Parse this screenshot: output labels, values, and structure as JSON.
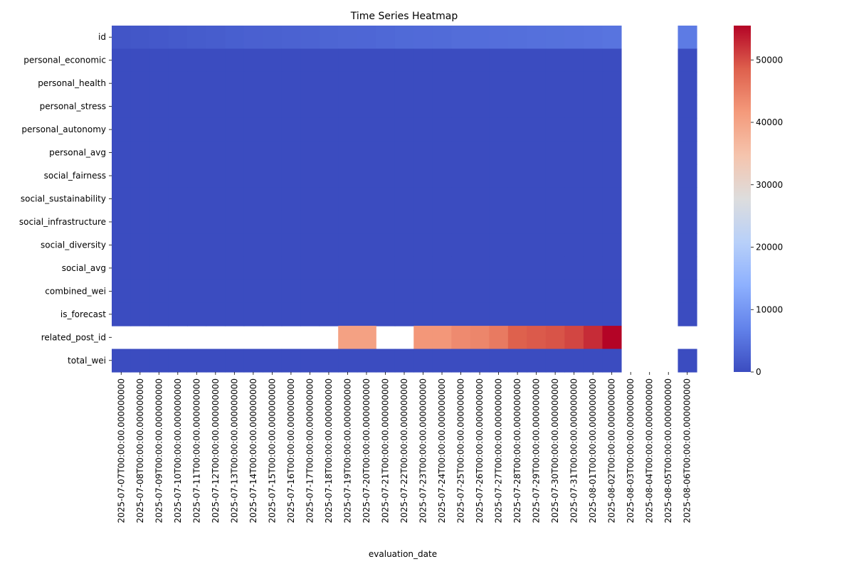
{
  "chart_data": {
    "type": "heatmap",
    "title": "Time Series Heatmap",
    "xlabel": "evaluation_date",
    "ylabel": "",
    "colormap": "coolwarm",
    "color_range": [
      0,
      55500
    ],
    "colorbar_ticks": [
      0,
      10000,
      20000,
      30000,
      40000,
      50000
    ],
    "colorbar_tick_labels": [
      "0",
      "10000",
      "20000",
      "30000",
      "40000",
      "50000"
    ],
    "rows": [
      "id",
      "personal_economic",
      "personal_health",
      "personal_stress",
      "personal_autonomy",
      "personal_avg",
      "social_fairness",
      "social_sustainability",
      "social_infrastructure",
      "social_diversity",
      "social_avg",
      "combined_wei",
      "is_forecast",
      "related_post_id",
      "total_wei"
    ],
    "columns": [
      "2025-07-07T00:00:00.000000000",
      "2025-07-08T00:00:00.000000000",
      "2025-07-09T00:00:00.000000000",
      "2025-07-10T00:00:00.000000000",
      "2025-07-11T00:00:00.000000000",
      "2025-07-12T00:00:00.000000000",
      "2025-07-13T00:00:00.000000000",
      "2025-07-14T00:00:00.000000000",
      "2025-07-15T00:00:00.000000000",
      "2025-07-16T00:00:00.000000000",
      "2025-07-17T00:00:00.000000000",
      "2025-07-18T00:00:00.000000000",
      "2025-07-19T00:00:00.000000000",
      "2025-07-20T00:00:00.000000000",
      "2025-07-21T00:00:00.000000000",
      "2025-07-22T00:00:00.000000000",
      "2025-07-23T00:00:00.000000000",
      "2025-07-24T00:00:00.000000000",
      "2025-07-25T00:00:00.000000000",
      "2025-07-26T00:00:00.000000000",
      "2025-07-27T00:00:00.000000000",
      "2025-07-28T00:00:00.000000000",
      "2025-07-29T00:00:00.000000000",
      "2025-07-30T00:00:00.000000000",
      "2025-07-31T00:00:00.000000000",
      "2025-08-01T00:00:00.000000000",
      "2025-08-02T00:00:00.000000000",
      "2025-08-03T00:00:00.000000000",
      "2025-08-04T00:00:00.000000000",
      "2025-08-05T00:00:00.000000000",
      "2025-08-06T00:00:00.000000000"
    ],
    "values": [
      [
        1200,
        1400,
        1600,
        1800,
        2000,
        2200,
        2400,
        2600,
        2700,
        2800,
        3000,
        3200,
        3300,
        3400,
        3600,
        3800,
        3900,
        4000,
        4200,
        4300,
        4400,
        4500,
        4600,
        4700,
        4800,
        4900,
        5200,
        null,
        null,
        null,
        6000
      ],
      [
        0,
        0,
        0,
        0,
        0,
        0,
        0,
        0,
        0,
        0,
        0,
        0,
        0,
        0,
        0,
        0,
        0,
        0,
        0,
        0,
        0,
        0,
        0,
        0,
        0,
        0,
        0,
        null,
        null,
        null,
        0
      ],
      [
        0,
        0,
        0,
        0,
        0,
        0,
        0,
        0,
        0,
        0,
        0,
        0,
        0,
        0,
        0,
        0,
        0,
        0,
        0,
        0,
        0,
        0,
        0,
        0,
        0,
        0,
        0,
        null,
        null,
        null,
        0
      ],
      [
        0,
        0,
        0,
        0,
        0,
        0,
        0,
        0,
        0,
        0,
        0,
        0,
        0,
        0,
        0,
        0,
        0,
        0,
        0,
        0,
        0,
        0,
        0,
        0,
        0,
        0,
        0,
        null,
        null,
        null,
        0
      ],
      [
        0,
        0,
        0,
        0,
        0,
        0,
        0,
        0,
        0,
        0,
        0,
        0,
        0,
        0,
        0,
        0,
        0,
        0,
        0,
        0,
        0,
        0,
        0,
        0,
        0,
        0,
        0,
        null,
        null,
        null,
        0
      ],
      [
        0,
        0,
        0,
        0,
        0,
        0,
        0,
        0,
        0,
        0,
        0,
        0,
        0,
        0,
        0,
        0,
        0,
        0,
        0,
        0,
        0,
        0,
        0,
        0,
        0,
        0,
        0,
        null,
        null,
        null,
        0
      ],
      [
        0,
        0,
        0,
        0,
        0,
        0,
        0,
        0,
        0,
        0,
        0,
        0,
        0,
        0,
        0,
        0,
        0,
        0,
        0,
        0,
        0,
        0,
        0,
        0,
        0,
        0,
        0,
        null,
        null,
        null,
        0
      ],
      [
        0,
        0,
        0,
        0,
        0,
        0,
        0,
        0,
        0,
        0,
        0,
        0,
        0,
        0,
        0,
        0,
        0,
        0,
        0,
        0,
        0,
        0,
        0,
        0,
        0,
        0,
        0,
        null,
        null,
        null,
        0
      ],
      [
        0,
        0,
        0,
        0,
        0,
        0,
        0,
        0,
        0,
        0,
        0,
        0,
        0,
        0,
        0,
        0,
        0,
        0,
        0,
        0,
        0,
        0,
        0,
        0,
        0,
        0,
        0,
        null,
        null,
        null,
        0
      ],
      [
        0,
        0,
        0,
        0,
        0,
        0,
        0,
        0,
        0,
        0,
        0,
        0,
        0,
        0,
        0,
        0,
        0,
        0,
        0,
        0,
        0,
        0,
        0,
        0,
        0,
        0,
        0,
        null,
        null,
        null,
        0
      ],
      [
        0,
        0,
        0,
        0,
        0,
        0,
        0,
        0,
        0,
        0,
        0,
        0,
        0,
        0,
        0,
        0,
        0,
        0,
        0,
        0,
        0,
        0,
        0,
        0,
        0,
        0,
        0,
        null,
        null,
        null,
        0
      ],
      [
        0,
        0,
        0,
        0,
        0,
        0,
        0,
        0,
        0,
        0,
        0,
        0,
        0,
        0,
        0,
        0,
        0,
        0,
        0,
        0,
        0,
        0,
        0,
        0,
        0,
        0,
        0,
        null,
        null,
        null,
        0
      ],
      [
        0,
        0,
        0,
        0,
        0,
        0,
        0,
        0,
        0,
        0,
        0,
        0,
        0,
        0,
        0,
        0,
        0,
        0,
        0,
        0,
        0,
        0,
        0,
        0,
        0,
        0,
        0,
        null,
        null,
        null,
        0
      ],
      [
        null,
        null,
        null,
        null,
        null,
        null,
        null,
        null,
        null,
        null,
        null,
        null,
        40500,
        40500,
        null,
        null,
        42000,
        42000,
        43500,
        44000,
        45500,
        48500,
        49000,
        49500,
        50500,
        52500,
        55500,
        null,
        null,
        null,
        null
      ],
      [
        0,
        0,
        0,
        0,
        0,
        0,
        0,
        0,
        0,
        0,
        0,
        0,
        0,
        0,
        0,
        0,
        0,
        0,
        0,
        0,
        0,
        0,
        0,
        0,
        0,
        0,
        0,
        null,
        null,
        null,
        0
      ]
    ]
  }
}
